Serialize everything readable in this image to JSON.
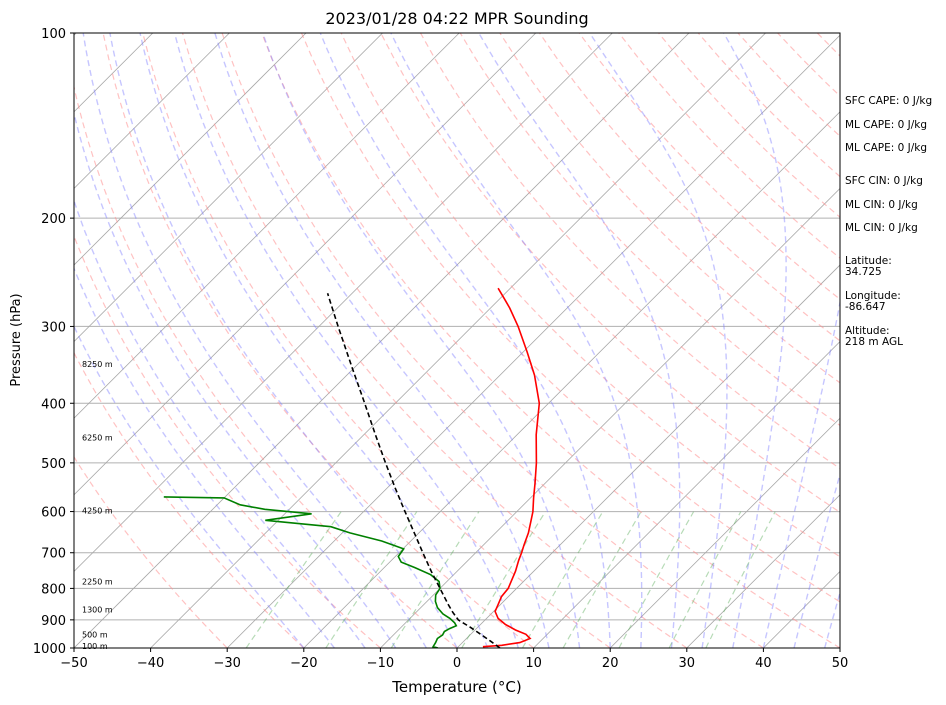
{
  "chart_data": {
    "type": "line",
    "title": "2023/01/28 04:22 MPR Sounding",
    "xlabel": "Temperature (°C)",
    "ylabel": "Pressure (hPa)",
    "xlim": [
      -50,
      50
    ],
    "ylim": [
      1000,
      100
    ],
    "y_scale": "log",
    "skew": true,
    "x_ticks": [
      "−50",
      "−40",
      "−30",
      "−20",
      "−10",
      "0",
      "10",
      "20",
      "30",
      "40",
      "50"
    ],
    "y_ticks": [
      100,
      200,
      300,
      400,
      500,
      600,
      700,
      800,
      900,
      1000
    ],
    "grid": true,
    "height_labels": [
      {
        "text": "8250 m",
        "p": 345
      },
      {
        "text": "6250 m",
        "p": 455
      },
      {
        "text": "4250 m",
        "p": 598
      },
      {
        "text": "2250 m",
        "p": 780
      },
      {
        "text": "1300 m",
        "p": 865
      },
      {
        "text": "500 m",
        "p": 950
      },
      {
        "text": "100 m",
        "p": 992
      }
    ],
    "series": [
      {
        "color": "#ff0000",
        "points": [
          [
            995,
            3.2
          ],
          [
            990,
            5.5
          ],
          [
            980,
            7.5
          ],
          [
            965,
            8.3
          ],
          [
            950,
            7.2
          ],
          [
            935,
            5.3
          ],
          [
            915,
            3.2
          ],
          [
            895,
            1.5
          ],
          [
            872,
            0.2
          ],
          [
            850,
            -0.3
          ],
          [
            825,
            -0.9
          ],
          [
            800,
            -1.1
          ],
          [
            780,
            -1.6
          ],
          [
            750,
            -2.4
          ],
          [
            720,
            -3.4
          ],
          [
            700,
            -4.0
          ],
          [
            680,
            -4.7
          ],
          [
            650,
            -5.7
          ],
          [
            620,
            -7.0
          ],
          [
            600,
            -7.9
          ],
          [
            570,
            -9.6
          ],
          [
            540,
            -11.3
          ],
          [
            500,
            -13.8
          ],
          [
            450,
            -17.5
          ],
          [
            400,
            -21.2
          ],
          [
            360,
            -25.5
          ],
          [
            330,
            -29.5
          ],
          [
            300,
            -34.0
          ],
          [
            280,
            -37.5
          ],
          [
            270,
            -39.5
          ],
          [
            260,
            -41.6
          ]
        ]
      },
      {
        "color": "#008000",
        "points": [
          [
            1000,
            -2.5
          ],
          [
            995,
            -3.3
          ],
          [
            980,
            -3.5
          ],
          [
            965,
            -3.8
          ],
          [
            952,
            -3.6
          ],
          [
            940,
            -3.8
          ],
          [
            930,
            -3.5
          ],
          [
            920,
            -3.0
          ],
          [
            910,
            -3.6
          ],
          [
            895,
            -4.8
          ],
          [
            880,
            -6.3
          ],
          [
            860,
            -7.8
          ],
          [
            840,
            -8.9
          ],
          [
            820,
            -9.7
          ],
          [
            800,
            -10.0
          ],
          [
            780,
            -11.0
          ],
          [
            760,
            -13.0
          ],
          [
            740,
            -16.0
          ],
          [
            725,
            -18.5
          ],
          [
            710,
            -19.6
          ],
          [
            690,
            -19.9
          ],
          [
            670,
            -23.8
          ],
          [
            650,
            -29.0
          ],
          [
            635,
            -32.3
          ],
          [
            620,
            -41.7
          ],
          [
            605,
            -36.5
          ],
          [
            595,
            -43.2
          ],
          [
            585,
            -47.0
          ],
          [
            570,
            -50.0
          ],
          [
            568,
            -58.0
          ]
        ]
      },
      {
        "color": "#000000",
        "dashed": true,
        "points": [
          [
            1000,
            5.6
          ],
          [
            975,
            3.5
          ],
          [
            950,
            1.3
          ],
          [
            925,
            -1.0
          ],
          [
            900,
            -3.5
          ],
          [
            875,
            -5.2
          ],
          [
            850,
            -6.8
          ],
          [
            800,
            -10.0
          ],
          [
            750,
            -13.4
          ],
          [
            700,
            -16.9
          ],
          [
            650,
            -20.6
          ],
          [
            600,
            -24.6
          ],
          [
            550,
            -28.9
          ],
          [
            500,
            -33.5
          ],
          [
            450,
            -38.5
          ],
          [
            400,
            -44.0
          ],
          [
            350,
            -50.3
          ],
          [
            300,
            -57.5
          ],
          [
            275,
            -61.5
          ],
          [
            265,
            -63.2
          ]
        ]
      }
    ]
  },
  "side_panel": {
    "sfc_cape": "SFC CAPE: 0 J/kg",
    "ml_cape_1": "ML CAPE: 0 J/kg",
    "ml_cape_2": "ML CAPE: 0 J/kg",
    "sfc_cin": "SFC CIN: 0 J/kg",
    "ml_cin_1": "ML CIN: 0 J/kg",
    "ml_cin_2": "ML CIN: 0 J/kg",
    "latitude_label": "Latitude:",
    "latitude_value": "34.725",
    "longitude_label": "Longitude:",
    "longitude_value": "-86.647",
    "altitude_label": "Altitude:",
    "altitude_value": "218 m AGL"
  }
}
